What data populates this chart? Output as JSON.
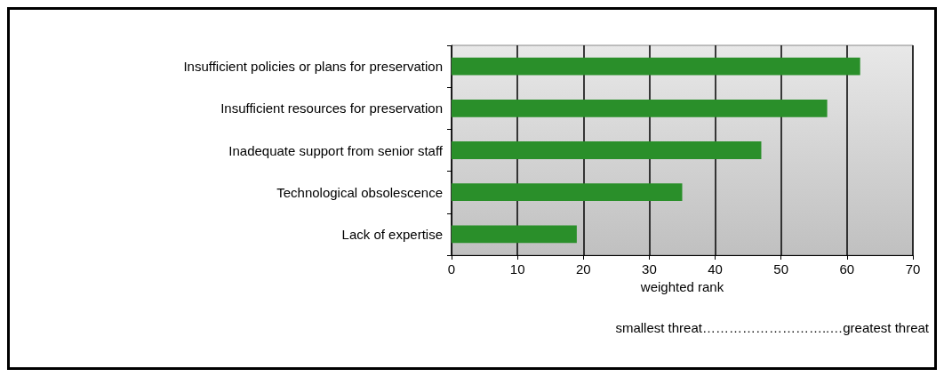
{
  "chart_data": {
    "type": "bar",
    "orientation": "horizontal",
    "xlabel": "weighted rank",
    "categories": [
      "Insufficient policies or plans for preservation",
      "Insufficient resources for preservation",
      "Inadequate support from senior staff",
      "Technological obsolescence",
      "Lack of expertise"
    ],
    "values": [
      62,
      57,
      47,
      35,
      19
    ],
    "color": "#2a8f2a",
    "xlim": [
      0,
      70
    ],
    "xticks": [
      0,
      10,
      20,
      30,
      40,
      50,
      60,
      70
    ],
    "grid": "x",
    "annotations": [
      "smallest threat………………………..…greatest threat"
    ]
  }
}
